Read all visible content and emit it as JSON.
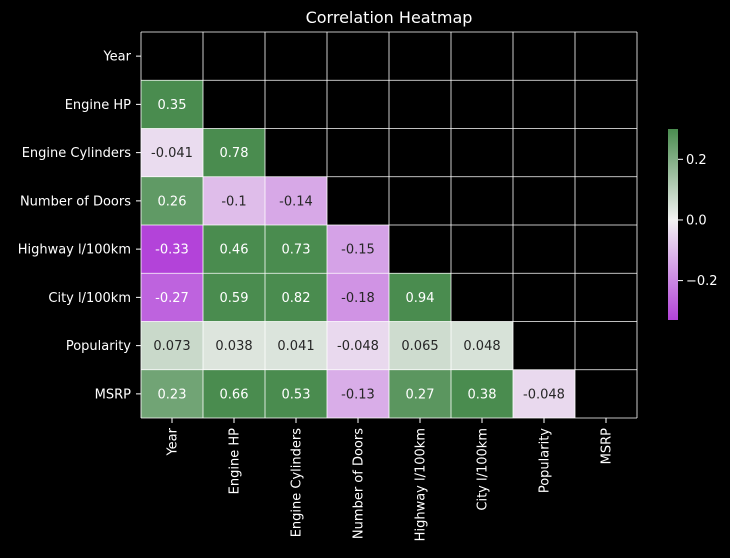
{
  "chart_data": {
    "type": "heatmap",
    "title": "Correlation Heatmap",
    "labels": [
      "Year",
      "Engine HP",
      "Engine Cylinders",
      "Number of Doors",
      "Highway l/100km",
      "City l/100km",
      "Popularity",
      "MSRP"
    ],
    "values": [
      [
        null,
        null,
        null,
        null,
        null,
        null,
        null,
        null
      ],
      [
        0.35,
        null,
        null,
        null,
        null,
        null,
        null,
        null
      ],
      [
        -0.041,
        0.78,
        null,
        null,
        null,
        null,
        null,
        null
      ],
      [
        0.26,
        -0.1,
        -0.14,
        null,
        null,
        null,
        null,
        null
      ],
      [
        -0.33,
        0.46,
        0.73,
        -0.15,
        null,
        null,
        null,
        null
      ],
      [
        -0.27,
        0.59,
        0.82,
        -0.18,
        0.94,
        null,
        null,
        null
      ],
      [
        0.073,
        0.038,
        0.041,
        -0.048,
        0.065,
        0.048,
        null,
        null
      ],
      [
        0.23,
        0.66,
        0.53,
        -0.13,
        0.27,
        0.38,
        -0.048,
        null
      ]
    ],
    "mask": "upper-triangle",
    "color_range": [
      -0.33,
      0.3
    ],
    "colorbar": {
      "ticks": [
        0.2,
        0.0,
        -0.2
      ],
      "tick_labels": [
        "0.2",
        "0.0",
        "−0.2"
      ],
      "placement": "right"
    },
    "colors": {
      "negative": "#b343d9",
      "neutral": "#f2f2f2",
      "positive": "#4a8c4f",
      "background": "#000000",
      "grid_lines": "#ffffff"
    }
  }
}
